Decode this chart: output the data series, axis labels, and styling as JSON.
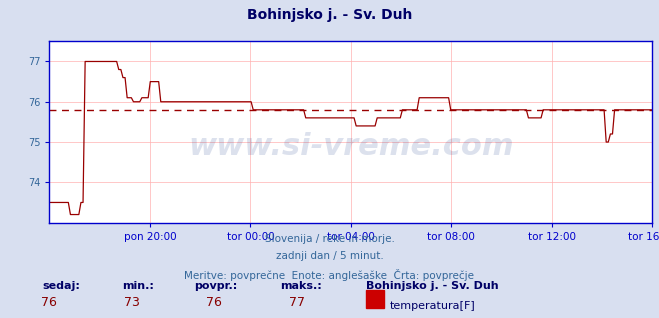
{
  "title": "Bohinjsko j. - Sv. Duh",
  "subtitle1": "Slovenija / reke in morje.",
  "subtitle2": "zadnji dan / 5 minut.",
  "subtitle3": "Meritve: povprečne  Enote: anglešaške  Črta: povprečje",
  "bg_color": "#d8dff0",
  "plot_bg_color": "#ffffff",
  "line_color": "#990000",
  "grid_color": "#ffb0b0",
  "axis_color": "#0000cc",
  "dashed_line_color": "#990000",
  "dashed_line_value": 75.8,
  "xlabel_color": "#336699",
  "ylabel_color": "#336699",
  "title_color": "#000066",
  "x_labels": [
    "pon 20:00",
    "tor 00:00",
    "tor 04:00",
    "tor 08:00",
    "tor 12:00",
    "tor 16:00"
  ],
  "x_ticks_norm": [
    0.1667,
    0.3333,
    0.5,
    0.6667,
    0.8333,
    1.0
  ],
  "ylim": [
    73.0,
    77.5
  ],
  "yticks": [
    74,
    75,
    76,
    77
  ],
  "sedaj": 76,
  "min_val": 73,
  "povpr": 76,
  "maks": 77,
  "legend_label": "temperatura[F]",
  "legend_color": "#cc0000",
  "stat_label_color": "#000066",
  "stat_value_color": "#880000",
  "data_y": [
    73.5,
    73.5,
    73.5,
    73.5,
    73.5,
    73.5,
    73.5,
    73.5,
    73.5,
    73.5,
    73.2,
    73.2,
    73.2,
    73.2,
    73.2,
    73.5,
    73.5,
    77.0,
    77.0,
    77.0,
    77.0,
    77.0,
    77.0,
    77.0,
    77.0,
    77.0,
    77.0,
    77.0,
    77.0,
    77.0,
    77.0,
    77.0,
    77.0,
    76.8,
    76.8,
    76.6,
    76.6,
    76.1,
    76.1,
    76.1,
    76.0,
    76.0,
    76.0,
    76.0,
    76.1,
    76.1,
    76.1,
    76.1,
    76.5,
    76.5,
    76.5,
    76.5,
    76.5,
    76.0,
    76.0,
    76.0,
    76.0,
    76.0,
    76.0,
    76.0,
    76.0,
    76.0,
    76.0,
    76.0,
    76.0,
    76.0,
    76.0,
    76.0,
    76.0,
    76.0,
    76.0,
    76.0,
    76.0,
    76.0,
    76.0,
    76.0,
    76.0,
    76.0,
    76.0,
    76.0,
    76.0,
    76.0,
    76.0,
    76.0,
    76.0,
    76.0,
    76.0,
    76.0,
    76.0,
    76.0,
    76.0,
    76.0,
    76.0,
    76.0,
    76.0,
    76.0,
    76.0,
    75.8,
    75.8,
    75.8,
    75.8,
    75.8,
    75.8,
    75.8,
    75.8,
    75.8,
    75.8,
    75.8,
    75.8,
    75.8,
    75.8,
    75.8,
    75.8,
    75.8,
    75.8,
    75.8,
    75.8,
    75.8,
    75.8,
    75.8,
    75.8,
    75.8,
    75.6,
    75.6,
    75.6,
    75.6,
    75.6,
    75.6,
    75.6,
    75.6,
    75.6,
    75.6,
    75.6,
    75.6,
    75.6,
    75.6,
    75.6,
    75.6,
    75.6,
    75.6,
    75.6,
    75.6,
    75.6,
    75.6,
    75.6,
    75.6,
    75.4,
    75.4,
    75.4,
    75.4,
    75.4,
    75.4,
    75.4,
    75.4,
    75.4,
    75.4,
    75.6,
    75.6,
    75.6,
    75.6,
    75.6,
    75.6,
    75.6,
    75.6,
    75.6,
    75.6,
    75.6,
    75.6,
    75.8,
    75.8,
    75.8,
    75.8,
    75.8,
    75.8,
    75.8,
    75.8,
    76.1,
    76.1,
    76.1,
    76.1,
    76.1,
    76.1,
    76.1,
    76.1,
    76.1,
    76.1,
    76.1,
    76.1,
    76.1,
    76.1,
    76.1,
    75.8,
    75.8,
    75.8,
    75.8,
    75.8,
    75.8,
    75.8,
    75.8,
    75.8,
    75.8,
    75.8,
    75.8,
    75.8,
    75.8,
    75.8,
    75.8,
    75.8,
    75.8,
    75.8,
    75.8,
    75.8,
    75.8,
    75.8,
    75.8,
    75.8,
    75.8,
    75.8,
    75.8,
    75.8,
    75.8,
    75.8,
    75.8,
    75.8,
    75.8,
    75.8,
    75.8,
    75.8,
    75.6,
    75.6,
    75.6,
    75.6,
    75.6,
    75.6,
    75.6,
    75.8,
    75.8,
    75.8,
    75.8,
    75.8,
    75.8,
    75.8,
    75.8,
    75.8,
    75.8,
    75.8,
    75.8,
    75.8,
    75.8,
    75.8,
    75.8,
    75.8,
    75.8,
    75.8,
    75.8,
    75.8,
    75.8,
    75.8,
    75.8,
    75.8,
    75.8,
    75.8,
    75.8,
    75.8,
    75.8,
    75.0,
    75.0,
    75.2,
    75.2,
    75.8,
    75.8,
    75.8,
    75.8,
    75.8,
    75.8,
    75.8,
    75.8,
    75.8,
    75.8,
    75.8,
    75.8,
    75.8,
    75.8,
    75.8,
    75.8,
    75.8,
    75.8,
    75.8
  ]
}
